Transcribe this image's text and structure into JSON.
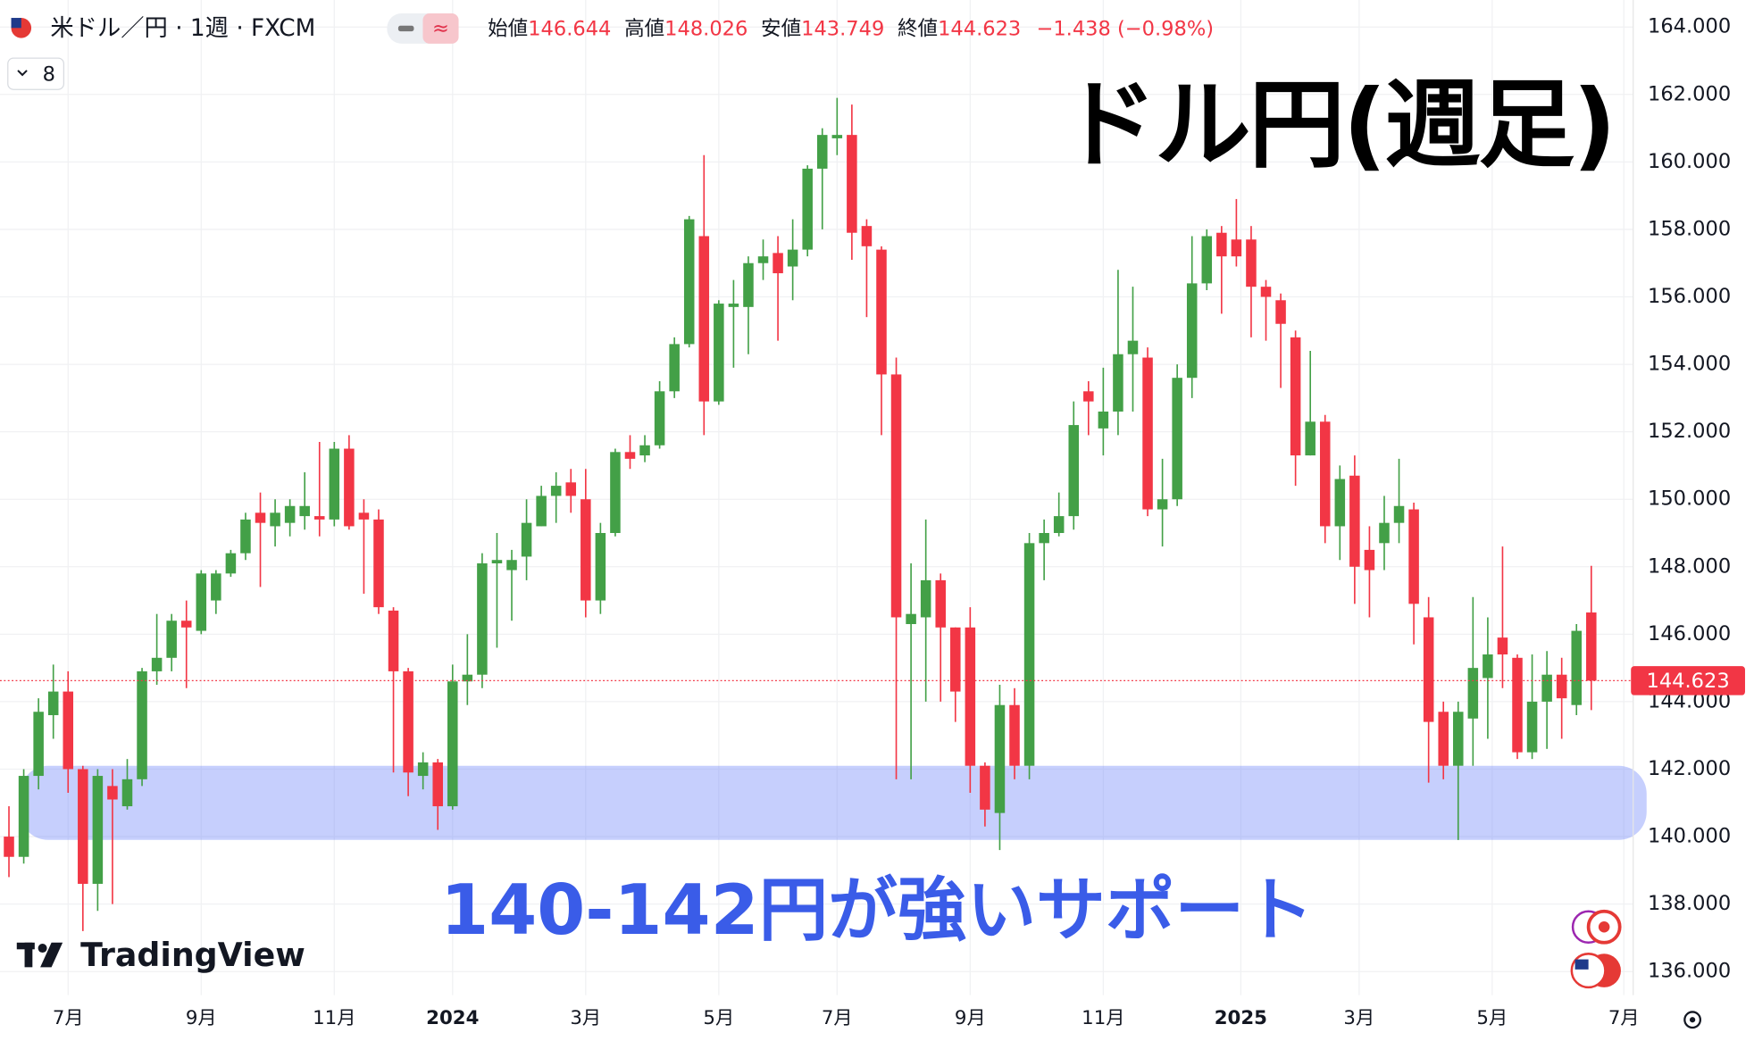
{
  "header": {
    "symbol": "米ドル／円 · 1週 · FXCM",
    "open_label": "始値",
    "high_label": "高値",
    "low_label": "安値",
    "close_label": "終値",
    "change": "−1.438 (−0.98%)"
  },
  "ui": {
    "indicator_count": "8",
    "logo": "TradingView"
  },
  "chart_data": {
    "type": "candlestick",
    "categories": [
      null,
      null,
      null,
      null,
      null,
      null,
      null,
      null,
      null,
      null,
      null,
      null,
      null,
      null,
      null,
      null,
      null,
      null,
      null,
      null,
      null,
      null,
      null,
      null,
      null,
      null,
      null,
      null,
      null,
      null,
      null,
      null,
      null,
      null,
      null,
      null,
      null,
      null,
      null,
      null,
      null,
      null,
      null,
      null,
      null,
      null,
      null,
      null,
      null,
      null,
      null,
      null,
      null,
      null,
      null,
      null,
      null,
      null,
      null,
      null,
      null,
      null,
      null,
      null,
      null,
      null,
      null,
      null,
      null,
      null,
      null,
      null,
      null,
      null,
      null,
      null,
      null,
      null,
      null,
      null,
      null,
      null,
      null,
      null,
      null,
      null,
      null,
      null,
      null,
      null,
      null,
      null,
      null,
      null,
      null,
      null,
      null,
      null,
      null,
      null,
      null,
      null,
      null,
      null,
      null,
      null,
      null,
      null
    ],
    "open": [
      140.0,
      139.4,
      141.8,
      143.6,
      144.3,
      142.0,
      138.6,
      141.5,
      140.9,
      141.7,
      144.9,
      145.3,
      146.4,
      146.1,
      147.0,
      147.8,
      148.4,
      149.6,
      149.2,
      149.3,
      149.5,
      149.5,
      149.4,
      151.5,
      149.6,
      149.4,
      146.7,
      144.9,
      141.8,
      142.2,
      140.9,
      144.6,
      144.8,
      148.1,
      147.9,
      148.3,
      149.2,
      150.1,
      150.5,
      150.0,
      147.0,
      149.0,
      151.4,
      151.3,
      151.6,
      153.2,
      154.6,
      157.8,
      152.9,
      155.7,
      155.7,
      157.0,
      157.3,
      156.9,
      157.4,
      159.8,
      160.7,
      160.8,
      158.1,
      157.4,
      153.7,
      146.3,
      146.5,
      147.6,
      146.2,
      146.2,
      142.1,
      140.7,
      143.9,
      142.1,
      148.7,
      149.0,
      149.5,
      153.2,
      152.1,
      152.6,
      154.3,
      154.2,
      149.7,
      150.0,
      153.6,
      156.4,
      157.9,
      157.7,
      157.7,
      156.3,
      155.9,
      154.8,
      151.3,
      152.3,
      149.2,
      150.7,
      148.5,
      148.7,
      149.3,
      149.7,
      146.5,
      143.7,
      142.1,
      143.5,
      144.7,
      145.9,
      145.3,
      142.5,
      144.0,
      144.8,
      143.9,
      146.644
    ],
    "high": [
      140.9,
      142.0,
      144.1,
      145.1,
      144.9,
      142.1,
      142.0,
      142.0,
      142.3,
      145.0,
      146.6,
      146.6,
      147.0,
      147.9,
      147.9,
      148.5,
      149.6,
      150.2,
      150.0,
      150.0,
      150.8,
      151.7,
      151.7,
      151.9,
      150.0,
      149.7,
      146.8,
      145.0,
      142.5,
      142.3,
      145.1,
      146.0,
      148.4,
      149.0,
      148.5,
      150.0,
      150.4,
      150.8,
      150.9,
      150.9,
      149.3,
      151.5,
      151.9,
      151.9,
      153.5,
      154.8,
      158.4,
      160.2,
      155.9,
      156.5,
      157.2,
      157.7,
      157.8,
      158.3,
      159.9,
      161.0,
      161.9,
      161.7,
      158.3,
      157.5,
      154.2,
      148.1,
      149.4,
      147.8,
      146.2,
      146.8,
      142.2,
      144.5,
      144.4,
      149.0,
      149.4,
      150.2,
      152.9,
      153.5,
      153.9,
      156.8,
      156.3,
      154.5,
      151.2,
      154.0,
      157.8,
      158.0,
      158.1,
      158.9,
      158.1,
      156.5,
      156.1,
      155.0,
      154.4,
      152.5,
      151.0,
      151.3,
      149.2,
      150.1,
      151.2,
      149.9,
      147.1,
      144.0,
      144.0,
      147.1,
      146.5,
      148.6,
      145.4,
      145.4,
      145.5,
      145.3,
      146.3,
      148.026
    ],
    "low": [
      138.8,
      139.2,
      141.4,
      142.9,
      141.3,
      137.2,
      137.8,
      138.0,
      140.8,
      141.5,
      144.5,
      144.9,
      144.4,
      146.0,
      146.6,
      147.7,
      148.2,
      147.4,
      148.6,
      148.9,
      149.1,
      148.9,
      149.2,
      149.1,
      147.2,
      146.6,
      141.9,
      141.2,
      141.4,
      140.2,
      140.8,
      143.9,
      144.4,
      145.6,
      146.4,
      147.6,
      149.2,
      149.3,
      149.6,
      146.5,
      146.6,
      148.9,
      150.9,
      151.1,
      151.5,
      153.0,
      154.5,
      151.9,
      152.8,
      153.9,
      154.3,
      156.5,
      154.7,
      155.9,
      157.2,
      158.0,
      160.2,
      157.1,
      155.4,
      151.9,
      141.7,
      141.7,
      144.0,
      144.0,
      143.4,
      141.3,
      140.3,
      139.6,
      141.7,
      141.7,
      147.6,
      148.9,
      149.1,
      151.9,
      151.3,
      151.9,
      152.6,
      149.5,
      148.6,
      149.8,
      153.0,
      156.2,
      155.5,
      156.9,
      154.8,
      154.7,
      153.3,
      150.4,
      151.3,
      148.7,
      148.2,
      146.9,
      146.5,
      147.9,
      148.7,
      145.7,
      141.6,
      141.7,
      139.9,
      142.1,
      142.9,
      144.4,
      142.3,
      142.3,
      142.6,
      142.9,
      143.6,
      143.749
    ],
    "close": [
      139.4,
      141.8,
      143.7,
      144.3,
      142.0,
      138.6,
      141.8,
      141.1,
      141.7,
      144.9,
      145.3,
      146.4,
      146.2,
      147.8,
      147.8,
      148.4,
      149.4,
      149.3,
      149.6,
      149.8,
      149.8,
      149.4,
      151.5,
      149.2,
      149.4,
      146.8,
      144.9,
      141.9,
      142.2,
      140.9,
      144.6,
      144.8,
      148.1,
      148.2,
      148.2,
      149.3,
      150.1,
      150.4,
      150.1,
      147.0,
      149.0,
      151.4,
      151.2,
      151.6,
      153.2,
      154.6,
      158.3,
      152.9,
      155.8,
      155.8,
      157.0,
      157.2,
      156.7,
      157.4,
      159.8,
      160.8,
      160.8,
      157.9,
      157.5,
      153.7,
      146.5,
      146.6,
      147.6,
      146.2,
      144.3,
      142.1,
      140.8,
      143.9,
      142.1,
      148.7,
      149.0,
      149.5,
      152.2,
      152.9,
      152.6,
      154.3,
      154.7,
      149.7,
      150.0,
      153.6,
      156.4,
      157.8,
      157.2,
      157.2,
      156.3,
      156.0,
      155.2,
      151.3,
      152.3,
      149.2,
      150.6,
      148.0,
      147.9,
      149.3,
      149.8,
      146.9,
      143.4,
      142.1,
      143.7,
      145.0,
      145.4,
      145.4,
      142.5,
      144.0,
      144.8,
      144.1,
      146.1,
      144.623
    ],
    "up_color": "#43a047",
    "down_color": "#f23645",
    "ylim": [
      135.3,
      164.8
    ],
    "yticks": [
      {
        "value": 136,
        "label": "136.000"
      },
      {
        "value": 138,
        "label": "138.000"
      },
      {
        "value": 140,
        "label": "140.000"
      },
      {
        "value": 142,
        "label": "142.000"
      },
      {
        "value": 144,
        "label": "144.000"
      },
      {
        "value": 146,
        "label": "146.000"
      },
      {
        "value": 148,
        "label": "148.000"
      },
      {
        "value": 150,
        "label": "150.000"
      },
      {
        "value": 152,
        "label": "152.000"
      },
      {
        "value": 154,
        "label": "154.000"
      },
      {
        "value": 156,
        "label": "156.000"
      },
      {
        "value": 158,
        "label": "158.000"
      },
      {
        "value": 160,
        "label": "160.000"
      },
      {
        "value": 162,
        "label": "162.000"
      },
      {
        "value": 164,
        "label": "164.000"
      }
    ],
    "xticks": [
      {
        "value": 4,
        "label": "7月"
      },
      {
        "value": 13,
        "label": "9月"
      },
      {
        "value": 22,
        "label": "11月"
      },
      {
        "value": 30,
        "label": "2024"
      },
      {
        "value": 39,
        "label": "3月"
      },
      {
        "value": 48,
        "label": "5月"
      },
      {
        "value": 56,
        "label": "7月"
      },
      {
        "value": 65,
        "label": "9月"
      },
      {
        "value": 74,
        "label": "11月"
      },
      {
        "value": 83.3,
        "label": "2025"
      },
      {
        "value": 91.3,
        "label": "3月"
      },
      {
        "value": 100.3,
        "label": "5月"
      },
      {
        "value": 109.2,
        "label": "7月"
      }
    ],
    "grid": true,
    "support_band": [
      140.2,
      141.8
    ],
    "annotations": [
      "ドル円(週足)",
      "140-142円が強いサポート"
    ]
  }
}
